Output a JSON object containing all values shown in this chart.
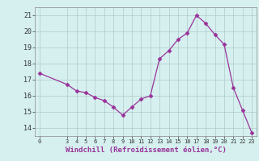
{
  "x": [
    0,
    3,
    4,
    5,
    6,
    7,
    8,
    9,
    10,
    11,
    12,
    13,
    14,
    15,
    16,
    17,
    18,
    19,
    20,
    21,
    22,
    23
  ],
  "y": [
    17.4,
    16.7,
    16.3,
    16.2,
    15.9,
    15.7,
    15.3,
    14.8,
    15.3,
    15.8,
    16.0,
    18.3,
    18.8,
    19.5,
    19.9,
    21.0,
    20.5,
    19.8,
    19.2,
    16.5,
    15.1,
    13.7
  ],
  "line_color": "#993399",
  "marker": "D",
  "marker_size": 2.5,
  "bg_color": "#d6f0f0",
  "grid_color": "#b0c8c8",
  "xlabel": "Windchill (Refroidissement éolien,°C)",
  "xlabel_color": "#993399",
  "ylim": [
    13.5,
    21.5
  ],
  "yticks": [
    14,
    15,
    16,
    17,
    18,
    19,
    20,
    21
  ],
  "xticks": [
    0,
    3,
    4,
    5,
    6,
    7,
    8,
    9,
    10,
    11,
    12,
    13,
    14,
    15,
    16,
    17,
    18,
    19,
    20,
    21,
    22,
    23
  ],
  "xlim": [
    -0.5,
    23.5
  ]
}
